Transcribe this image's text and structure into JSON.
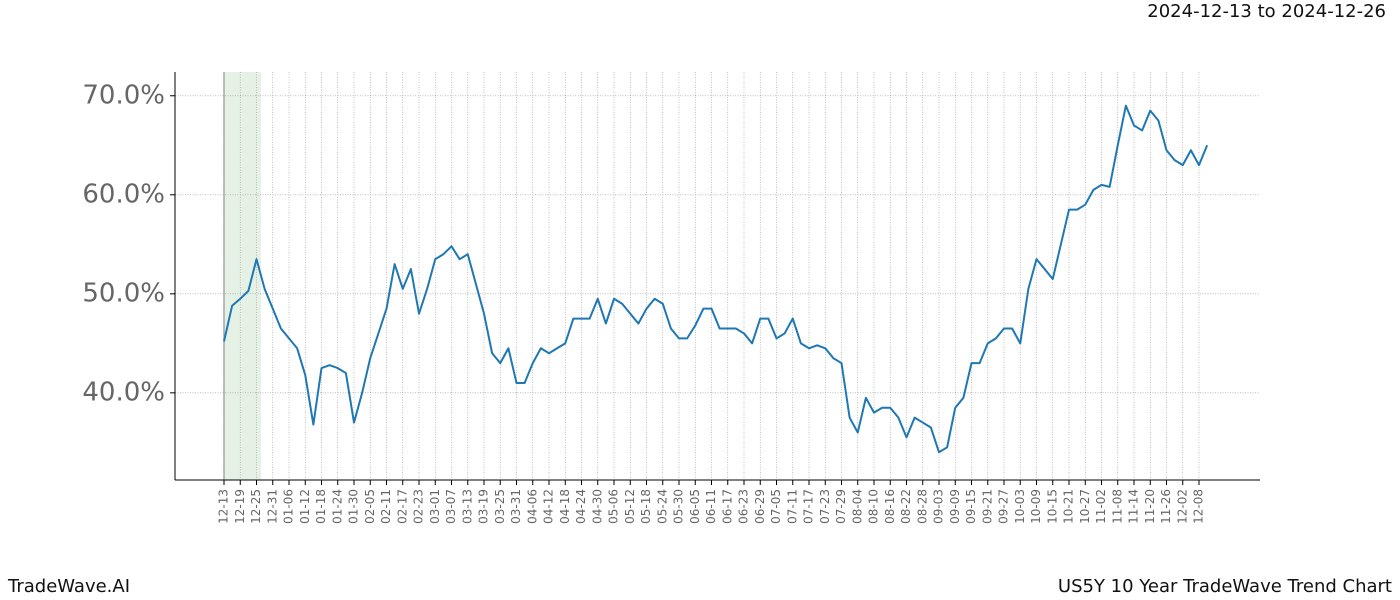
{
  "chart_data": {
    "type": "line",
    "title": "2024-12-13 to 2024-12-26",
    "footer_left": "TradeWave.AI",
    "footer_right": "US5Y 10 Year TradeWave Trend Chart",
    "color": "#1f77b4",
    "grid": true,
    "x": [
      "12-13",
      "12-16",
      "12-19",
      "12-22",
      "12-25",
      "12-28",
      "12-31",
      "01-03",
      "01-06",
      "01-09",
      "01-12",
      "01-15",
      "01-18",
      "01-21",
      "01-24",
      "01-27",
      "01-30",
      "02-02",
      "02-05",
      "02-08",
      "02-11",
      "02-14",
      "02-17",
      "02-20",
      "02-23",
      "02-26",
      "03-01",
      "03-04",
      "03-07",
      "03-10",
      "03-13",
      "03-16",
      "03-19",
      "03-22",
      "03-25",
      "03-28",
      "03-31",
      "04-03",
      "04-06",
      "04-09",
      "04-12",
      "04-15",
      "04-18",
      "04-21",
      "04-24",
      "04-27",
      "04-30",
      "05-03",
      "05-06",
      "05-09",
      "05-12",
      "05-15",
      "05-18",
      "05-21",
      "05-24",
      "05-27",
      "05-30",
      "06-02",
      "06-05",
      "06-08",
      "06-11",
      "06-14",
      "06-17",
      "06-20",
      "06-23",
      "06-26",
      "06-29",
      "07-02",
      "07-05",
      "07-08",
      "07-11",
      "07-14",
      "07-17",
      "07-20",
      "07-23",
      "07-26",
      "07-29",
      "08-01",
      "08-04",
      "08-07",
      "08-10",
      "08-13",
      "08-16",
      "08-19",
      "08-22",
      "08-25",
      "08-28",
      "08-31",
      "09-03",
      "09-06",
      "09-09",
      "09-12",
      "09-15",
      "09-18",
      "09-21",
      "09-24",
      "09-27",
      "09-30",
      "10-03",
      "10-06",
      "10-09",
      "10-12",
      "10-15",
      "10-18",
      "10-21",
      "10-24",
      "10-27",
      "10-30",
      "11-02",
      "11-05",
      "11-08",
      "11-11",
      "11-14",
      "11-17",
      "11-20",
      "11-23",
      "11-26",
      "11-29",
      "12-02",
      "12-05",
      "12-08",
      "12-11"
    ],
    "values": [
      45.2,
      48.8,
      49.5,
      50.3,
      53.5,
      50.5,
      48.5,
      46.5,
      45.5,
      44.5,
      41.8,
      36.8,
      42.5,
      42.8,
      42.5,
      42.0,
      37.0,
      40.0,
      43.5,
      46.0,
      48.5,
      53.0,
      50.5,
      52.5,
      48.0,
      50.5,
      53.5,
      54.0,
      54.8,
      53.5,
      54.0,
      51.0,
      48.0,
      44.0,
      43.0,
      44.5,
      41.0,
      41.0,
      43.0,
      44.5,
      44.0,
      44.5,
      45.0,
      47.5,
      47.5,
      47.5,
      49.5,
      47.0,
      49.5,
      49.0,
      48.0,
      47.0,
      48.5,
      49.5,
      49.0,
      46.5,
      45.5,
      45.5,
      46.8,
      48.5,
      48.5,
      46.5,
      46.5,
      46.5,
      46.0,
      45.0,
      47.5,
      47.5,
      45.5,
      46.0,
      47.5,
      45.0,
      44.5,
      44.8,
      44.5,
      43.5,
      43.0,
      37.5,
      36.0,
      39.5,
      38.0,
      38.5,
      38.5,
      37.5,
      35.5,
      37.5,
      37.0,
      36.5,
      34.0,
      34.5,
      38.5,
      39.5,
      43.0,
      43.0,
      45.0,
      45.5,
      46.5,
      46.5,
      45.0,
      50.5,
      53.5,
      52.5,
      51.5,
      55.0,
      58.5,
      58.5,
      59.0,
      60.5,
      61.0,
      60.8,
      65.0,
      69.0,
      67.0,
      66.5,
      68.5,
      67.5,
      64.5,
      63.5,
      63.0,
      64.5,
      63.0,
      65.0
    ],
    "xticks": [
      "12-13",
      "12-19",
      "12-25",
      "12-31",
      "01-06",
      "01-12",
      "01-18",
      "01-24",
      "01-30",
      "02-05",
      "02-11",
      "02-17",
      "02-23",
      "03-01",
      "03-07",
      "03-13",
      "03-19",
      "03-25",
      "03-31",
      "04-06",
      "04-12",
      "04-18",
      "04-24",
      "04-30",
      "05-06",
      "05-12",
      "05-18",
      "05-24",
      "05-30",
      "06-05",
      "06-11",
      "06-17",
      "06-23",
      "06-29",
      "07-05",
      "07-11",
      "07-17",
      "07-23",
      "07-29",
      "08-04",
      "08-10",
      "08-16",
      "08-22",
      "08-28",
      "09-03",
      "09-09",
      "09-15",
      "09-21",
      "09-27",
      "10-03",
      "10-09",
      "10-15",
      "10-21",
      "10-27",
      "11-02",
      "11-08",
      "11-14",
      "11-20",
      "11-26",
      "12-02",
      "12-08"
    ],
    "ylim": [
      31.2,
      72.4
    ],
    "yticks": [
      {
        "value": 40,
        "label": "40.0%"
      },
      {
        "value": 50,
        "label": "50.0%"
      },
      {
        "value": 60,
        "label": "60.0%"
      },
      {
        "value": 70,
        "label": "70.0%"
      }
    ]
  }
}
